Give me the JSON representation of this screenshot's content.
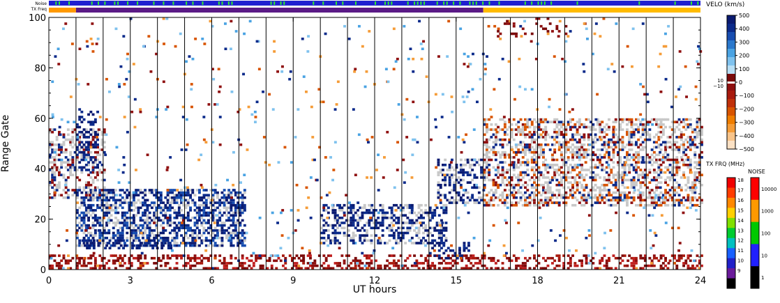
{
  "chart_data": {
    "type": "heatmap",
    "x_label": "UT hours",
    "y_label": "Range Gate",
    "x_range": [
      0,
      24
    ],
    "y_range": [
      0,
      100
    ],
    "x_ticks": [
      0,
      3,
      6,
      9,
      12,
      15,
      18,
      21,
      24
    ],
    "y_ticks": [
      0,
      20,
      40,
      60,
      80,
      100
    ],
    "vertical_lines_hours": [
      1,
      2,
      3,
      4,
      5,
      6,
      7,
      8,
      9,
      10,
      11,
      12,
      13,
      14,
      15,
      16,
      17,
      18,
      19,
      20,
      21,
      22,
      23
    ],
    "status_bars": {
      "noise_label": "Noise",
      "txfreq_label": "TX Freq",
      "noise_color": "#1f1fd0",
      "noise_accent": "#2ee82e",
      "txfreq_segments": [
        {
          "from": 0,
          "to": 1,
          "color": "#ff9900"
        },
        {
          "from": 1,
          "to": 16,
          "color": "#5a1a86"
        },
        {
          "from": 16,
          "to": 24,
          "color": "#ffbb00"
        }
      ]
    },
    "velocity_scale": {
      "title": "VELO (km/s)",
      "ticks": [
        "500",
        "400",
        "300",
        "200",
        "100",
        "0",
        "−100",
        "−200",
        "−300",
        "−400",
        "−500"
      ],
      "small_ticks": [
        "10",
        "−10"
      ],
      "colors_positive": [
        "#b9dff5",
        "#7fc2ee",
        "#4aa3e3",
        "#2a78cc",
        "#174db0",
        "#0b2a8a",
        "#0a1a70"
      ],
      "colors_negative": [
        "#7a0a0a",
        "#8f1010",
        "#a81a0e",
        "#c0300a",
        "#d85400",
        "#ef7d00",
        "#f59c38",
        "#f8c48a",
        "#fbe1c4"
      ]
    },
    "txfreq_scale": {
      "title": "TX FRQ (MHz)",
      "ticks": [
        "18",
        "17",
        "16",
        "15",
        "14",
        "13",
        "12",
        "11",
        "10",
        "9"
      ],
      "colors": [
        "#f00000",
        "#ff3c00",
        "#ff8800",
        "#ffd000",
        "#80e000",
        "#00cc30",
        "#00c0c0",
        "#1860ff",
        "#2020c8",
        "#6a1a9a",
        "#000000"
      ]
    },
    "noise_scale": {
      "title": "NOISE",
      "ticks": [
        "10000",
        "1000",
        "100",
        "10",
        "1"
      ],
      "colors": [
        "#ff0000",
        "#ff9900",
        "#00c800",
        "#2020ff",
        "#000000"
      ]
    },
    "features": [
      {
        "name": "scatter-cluster",
        "color": "velocity-negative",
        "hours": [
          0,
          24
        ],
        "gates": [
          0,
          6
        ],
        "note": "dense ground band"
      },
      {
        "name": "scatter-cluster",
        "color": "velocity-positive",
        "hours": [
          1,
          7.2
        ],
        "gates": [
          9,
          32
        ]
      },
      {
        "name": "scatter-cluster",
        "color": "velocity-positive",
        "hours": [
          10,
          14.6
        ],
        "gates": [
          8,
          26
        ]
      },
      {
        "name": "scatter-cluster",
        "color": "grey",
        "hours": [
          16,
          24
        ],
        "gates": [
          25,
          60
        ]
      },
      {
        "name": "scatter-cluster",
        "color": "grey",
        "hours": [
          0,
          2
        ],
        "gates": [
          28,
          56
        ]
      }
    ]
  }
}
